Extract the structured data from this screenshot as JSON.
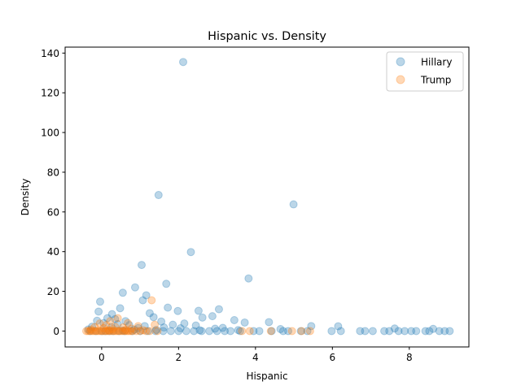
{
  "chart_data": {
    "type": "scatter",
    "title": "Hispanic vs. Density",
    "xlabel": "Hispanic",
    "ylabel": "Density",
    "xlim": [
      -0.95,
      9.55
    ],
    "ylim": [
      -8,
      143
    ],
    "xticks": [
      0,
      2,
      4,
      6,
      8
    ],
    "yticks": [
      0,
      20,
      40,
      60,
      80,
      100,
      120,
      140
    ],
    "grid": false,
    "legend_position": "top-right",
    "series": [
      {
        "name": "Hillary",
        "color": "#1f77b4",
        "points": [
          [
            2.12,
            135.5
          ],
          [
            1.48,
            68.5
          ],
          [
            4.99,
            63.8
          ],
          [
            2.32,
            39.8
          ],
          [
            1.04,
            33.3
          ],
          [
            3.82,
            26.5
          ],
          [
            1.68,
            23.8
          ],
          [
            0.87,
            22.0
          ],
          [
            0.55,
            19.3
          ],
          [
            1.16,
            18.0
          ],
          [
            1.07,
            15.5
          ],
          [
            -0.04,
            14.8
          ],
          [
            1.72,
            11.8
          ],
          [
            0.48,
            11.5
          ],
          [
            3.05,
            11.0
          ],
          [
            2.52,
            10.2
          ],
          [
            1.98,
            10.1
          ],
          [
            -0.08,
            9.8
          ],
          [
            1.25,
            9.0
          ],
          [
            0.27,
            8.5
          ],
          [
            2.88,
            7.5
          ],
          [
            1.35,
            7.0
          ],
          [
            2.62,
            6.8
          ],
          [
            0.15,
            6.5
          ],
          [
            0.35,
            6.0
          ],
          [
            3.45,
            5.5
          ],
          [
            -0.12,
            5.2
          ],
          [
            0.62,
            5.0
          ],
          [
            1.55,
            4.8
          ],
          [
            4.35,
            4.5
          ],
          [
            3.72,
            4.3
          ],
          [
            0.05,
            4.0
          ],
          [
            2.15,
            3.8
          ],
          [
            0.42,
            3.5
          ],
          [
            1.85,
            3.2
          ],
          [
            0.72,
            3.0
          ],
          [
            2.45,
            2.8
          ],
          [
            1.12,
            2.5
          ],
          [
            5.45,
            2.5
          ],
          [
            6.15,
            2.4
          ],
          [
            -0.25,
            2.2
          ],
          [
            0.25,
            2.0
          ],
          [
            1.62,
            1.8
          ],
          [
            3.15,
            1.6
          ],
          [
            0.95,
            1.5
          ],
          [
            2.05,
            1.4
          ],
          [
            7.62,
            1.3
          ],
          [
            2.95,
            1.2
          ],
          [
            8.62,
            1.1
          ],
          [
            4.65,
            1.0
          ],
          [
            -0.35,
            0.8
          ],
          [
            0.85,
            0.7
          ],
          [
            1.42,
            0.6
          ],
          [
            3.55,
            0.5
          ],
          [
            2.55,
            0.4
          ],
          [
            0.55,
            0.3
          ],
          [
            -0.3,
            0.0
          ],
          [
            -0.15,
            0.0
          ],
          [
            0.0,
            0.0
          ],
          [
            0.1,
            0.0
          ],
          [
            0.2,
            0.0
          ],
          [
            0.3,
            0.0
          ],
          [
            0.45,
            0.0
          ],
          [
            0.6,
            0.0
          ],
          [
            0.8,
            0.0
          ],
          [
            1.0,
            0.0
          ],
          [
            1.2,
            0.0
          ],
          [
            1.4,
            0.0
          ],
          [
            1.6,
            0.0
          ],
          [
            1.8,
            0.0
          ],
          [
            2.0,
            0.0
          ],
          [
            2.2,
            0.0
          ],
          [
            2.4,
            0.0
          ],
          [
            2.6,
            0.0
          ],
          [
            2.8,
            0.0
          ],
          [
            3.0,
            0.0
          ],
          [
            3.2,
            0.0
          ],
          [
            3.35,
            0.0
          ],
          [
            3.6,
            0.0
          ],
          [
            3.95,
            0.0
          ],
          [
            4.1,
            0.0
          ],
          [
            4.42,
            0.0
          ],
          [
            4.72,
            0.0
          ],
          [
            4.85,
            0.0
          ],
          [
            5.18,
            0.0
          ],
          [
            5.35,
            0.0
          ],
          [
            5.98,
            0.0
          ],
          [
            6.22,
            0.0
          ],
          [
            6.72,
            0.0
          ],
          [
            6.85,
            0.0
          ],
          [
            7.05,
            0.0
          ],
          [
            7.35,
            0.0
          ],
          [
            7.48,
            0.0
          ],
          [
            7.72,
            0.0
          ],
          [
            7.88,
            0.0
          ],
          [
            8.05,
            0.0
          ],
          [
            8.18,
            0.0
          ],
          [
            8.42,
            0.0
          ],
          [
            8.52,
            0.0
          ],
          [
            8.78,
            0.0
          ],
          [
            8.92,
            0.0
          ],
          [
            9.05,
            0.0
          ]
        ]
      },
      {
        "name": "Trump",
        "color": "#ff7f0e",
        "points": [
          [
            1.3,
            15.5
          ],
          [
            0.42,
            6.5
          ],
          [
            0.22,
            5.0
          ],
          [
            0.68,
            4.0
          ],
          [
            -0.05,
            3.8
          ],
          [
            1.38,
            3.2
          ],
          [
            0.12,
            3.0
          ],
          [
            0.95,
            2.5
          ],
          [
            0.35,
            2.2
          ],
          [
            -0.18,
            2.0
          ],
          [
            0.55,
            1.8
          ],
          [
            0.05,
            1.5
          ],
          [
            0.78,
            1.2
          ],
          [
            0.28,
            1.0
          ],
          [
            -0.28,
            0.8
          ],
          [
            0.62,
            0.6
          ],
          [
            0.18,
            0.5
          ],
          [
            1.08,
            0.4
          ],
          [
            -0.4,
            0.0
          ],
          [
            -0.35,
            0.0
          ],
          [
            -0.3,
            0.0
          ],
          [
            -0.25,
            0.0
          ],
          [
            -0.2,
            0.0
          ],
          [
            -0.15,
            0.0
          ],
          [
            -0.1,
            0.0
          ],
          [
            -0.05,
            0.0
          ],
          [
            0.0,
            0.0
          ],
          [
            0.05,
            0.0
          ],
          [
            0.1,
            0.0
          ],
          [
            0.15,
            0.0
          ],
          [
            0.2,
            0.0
          ],
          [
            0.25,
            0.0
          ],
          [
            0.3,
            0.0
          ],
          [
            0.35,
            0.0
          ],
          [
            0.4,
            0.0
          ],
          [
            0.45,
            0.0
          ],
          [
            0.5,
            0.0
          ],
          [
            0.55,
            0.0
          ],
          [
            0.6,
            0.0
          ],
          [
            0.65,
            0.0
          ],
          [
            0.7,
            0.0
          ],
          [
            0.75,
            0.0
          ],
          [
            0.8,
            0.0
          ],
          [
            0.9,
            0.0
          ],
          [
            1.0,
            0.0
          ],
          [
            1.15,
            0.0
          ],
          [
            1.25,
            0.0
          ],
          [
            1.45,
            0.0
          ],
          [
            3.65,
            0.0
          ],
          [
            3.85,
            0.0
          ],
          [
            4.4,
            0.0
          ],
          [
            4.95,
            0.0
          ],
          [
            5.2,
            0.0
          ],
          [
            5.42,
            0.0
          ]
        ]
      }
    ]
  }
}
